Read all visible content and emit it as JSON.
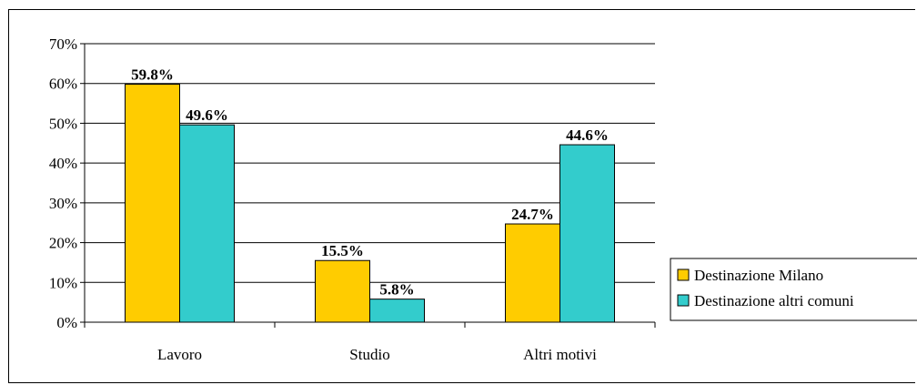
{
  "chart_data": {
    "type": "bar",
    "title": "",
    "xlabel": "",
    "ylabel": "",
    "categories": [
      "Lavoro",
      "Studio",
      "Altri motivi"
    ],
    "series": [
      {
        "name": "Destinazione Milano",
        "values": [
          59.8,
          15.5,
          24.7
        ],
        "labels": [
          "59.8%",
          "15.5%",
          "24.7%"
        ],
        "color": "#FFCC00"
      },
      {
        "name": "Destinazione altri comuni",
        "values": [
          49.6,
          5.8,
          44.6
        ],
        "labels": [
          "49.6%",
          "5.8%",
          "44.6%"
        ],
        "color": "#33CCCC"
      }
    ],
    "ylim": [
      0,
      70
    ],
    "yticks": [
      0,
      10,
      20,
      30,
      40,
      50,
      60,
      70
    ],
    "ytick_labels": [
      "0%",
      "10%",
      "20%",
      "30%",
      "40%",
      "50%",
      "60%",
      "70%"
    ],
    "grid": true,
    "legend_position": "right"
  }
}
